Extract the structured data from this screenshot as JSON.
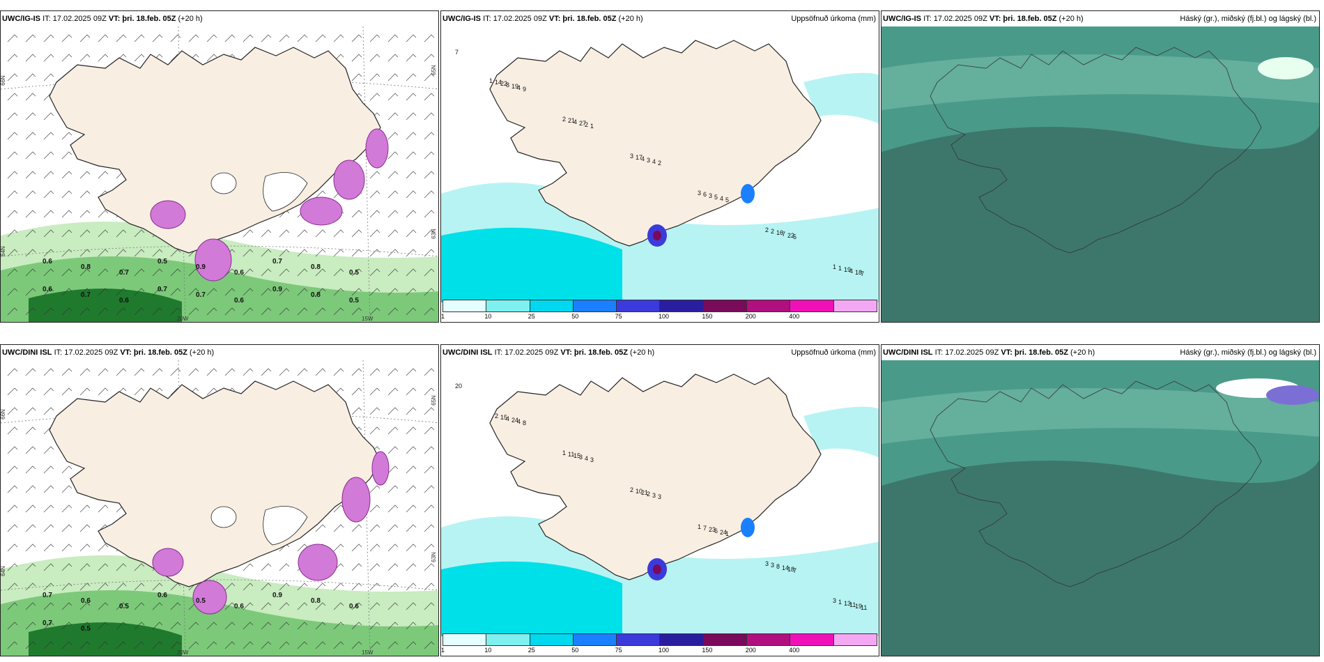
{
  "colors": {
    "land": "#f8eee2",
    "sea": "#ffffff",
    "precip_light": "#b8f3f3",
    "precip_mid": "#00e0e8",
    "green_light": "#c9ecc0",
    "green_mid": "#7cc97a",
    "green_dark": "#1f7a2e",
    "magenta": "#d27ad8",
    "cloud_bg": "#4a9a8a",
    "cloud_dark": "#3a6e64",
    "cloud_light": "#7fc4b0"
  },
  "colorbar": {
    "colors": [
      "#e4ffff",
      "#7ff0f0",
      "#00d8f0",
      "#1a80ff",
      "#3b3bdc",
      "#2a1ea0",
      "#7a0a5a",
      "#b0107e",
      "#f010b8",
      "#f4a8f4"
    ],
    "ticks": [
      "1",
      "10",
      "25",
      "50",
      "75",
      "100",
      "150",
      "200",
      "400"
    ]
  },
  "rows": [
    {
      "model": "UWC/IG-IS",
      "it": "IT: 17.02.2025 09Z",
      "vt_label": "VT:",
      "vt": "þri. 18.feb. 05Z",
      "lead": "(+20 h)",
      "precip_title": "Uppsöfnuð úrkoma (mm)",
      "cloud_title": "Háský (gr.), miðský (fj.bl.) og lágský (bl.)",
      "lat_labels": [
        "66N",
        "64N",
        "65N",
        "63N"
      ],
      "lon_labels": [
        "20W",
        "15W"
      ],
      "wind_values": [
        "0.6",
        "0.8",
        "0.7",
        "0.5",
        "0.9",
        "0.6",
        "0.7",
        "0.8",
        "0.5",
        "0.6",
        "0.7",
        "0.6",
        "0.7",
        "0.7",
        "0.6",
        "0.9",
        "0.8",
        "0.5"
      ],
      "precip_values": [
        "7",
        "9",
        "1",
        "2",
        "5",
        "5",
        "7",
        "4",
        "2",
        "4",
        "4",
        "22",
        "18",
        "19",
        "27",
        "3",
        "5",
        "7",
        "4",
        "8",
        "4",
        "4",
        "3",
        "16",
        "19",
        "22",
        "21",
        "17",
        "6",
        "2",
        "1",
        "14",
        "2",
        "3",
        "3",
        "2",
        "1",
        "1"
      ]
    },
    {
      "model": "UWC/DINI ISL",
      "it": "IT: 17.02.2025 09Z",
      "vt_label": "VT:",
      "vt": "þri. 18.feb. 05Z",
      "lead": "(+20 h)",
      "precip_title": "Uppsöfnuð úrkoma (mm)",
      "cloud_title": "Háský (gr.), miðský (fj.bl.) og lágský (bl.)",
      "lat_labels": [
        "66N",
        "64N",
        "65N",
        "63N"
      ],
      "lon_labels": [
        "20W",
        "15W"
      ],
      "wind_values": [
        "0.7",
        "0.6",
        "0.5",
        "0.6",
        "0.5",
        "0.6",
        "0.9",
        "0.8",
        "0.6",
        "0.7",
        "0.5"
      ],
      "precip_values": [
        "20",
        "8",
        "3",
        "3",
        "1",
        "7",
        "11",
        "4",
        "4",
        "3",
        "24",
        "18",
        "19",
        "24",
        "3",
        "2",
        "6",
        "14",
        "11",
        "4",
        "15",
        "21",
        "23",
        "8",
        "13",
        "15",
        "11",
        "10",
        "7",
        "3",
        "1",
        "2",
        "1",
        "2",
        "1",
        "3",
        "3"
      ]
    }
  ]
}
